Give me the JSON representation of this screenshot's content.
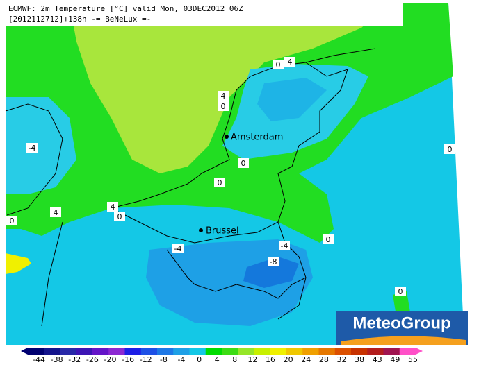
{
  "header": {
    "line1": "ECMWF: 2m Temperature [°C] valid Mon, 03DEC2012 06Z",
    "line2": "[2012112712]+138h -= BeNeLux =-"
  },
  "cities": [
    {
      "name": "Amsterdam"
    },
    {
      "name": "Brussel"
    }
  ],
  "contour_labels": [
    "0",
    "4",
    "4",
    "0",
    "-4",
    "0",
    "0",
    "0",
    "4",
    "4",
    "0",
    "0",
    "-4",
    "-4",
    "0",
    "-8",
    "0"
  ],
  "logo": "MeteoGroup",
  "colorbar": {
    "ticks": [
      -44,
      -38,
      -32,
      -26,
      -20,
      -16,
      -12,
      -8,
      -4,
      0,
      4,
      8,
      12,
      16,
      20,
      24,
      28,
      32,
      38,
      43,
      49,
      55
    ],
    "colors": [
      "#000070",
      "#14148c",
      "#2828a8",
      "#3c14b4",
      "#6414c8",
      "#8c28d2",
      "#1e1ee6",
      "#1e50e6",
      "#1e78e6",
      "#1ea0e6",
      "#14c8e6",
      "#00dc00",
      "#3cdc14",
      "#96e628",
      "#c8f000",
      "#f0f000",
      "#f0c800",
      "#f0a000",
      "#e67800",
      "#dc5000",
      "#c83200",
      "#b41e1e",
      "#a01450",
      "#ff50c8"
    ]
  }
}
